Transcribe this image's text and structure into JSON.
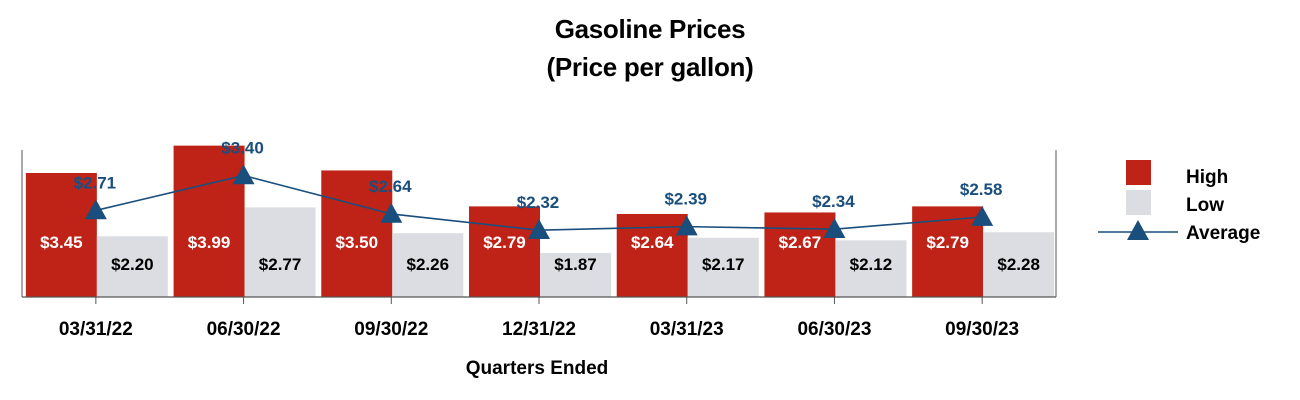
{
  "chart_data": {
    "type": "bar",
    "title": "Gasoline Prices",
    "subtitle": "(Price per gallon)",
    "xlabel": "Quarters Ended",
    "ylabel": "",
    "ylim": [
      1.0,
      4.2
    ],
    "categories": [
      "03/31/22",
      "06/30/22",
      "09/30/22",
      "12/31/22",
      "03/31/23",
      "06/30/23",
      "09/30/23"
    ],
    "series": [
      {
        "name": "High",
        "kind": "bar",
        "color": "#bf2318",
        "values": [
          3.45,
          3.99,
          3.5,
          2.79,
          2.64,
          2.67,
          2.79
        ],
        "labels": [
          "$3.45",
          "$3.99",
          "$3.50",
          "$2.79",
          "$2.64",
          "$2.67",
          "$2.79"
        ]
      },
      {
        "name": "Low",
        "kind": "bar",
        "color": "#dcdde2",
        "values": [
          2.2,
          2.77,
          2.26,
          1.87,
          2.17,
          2.12,
          2.28
        ],
        "labels": [
          "$2.20",
          "$2.77",
          "$2.26",
          "$1.87",
          "$2.17",
          "$2.12",
          "$2.28"
        ]
      },
      {
        "name": "Average",
        "kind": "line",
        "color": "#1a4e7c",
        "values": [
          2.71,
          3.4,
          2.64,
          2.32,
          2.39,
          2.34,
          2.58
        ],
        "labels": [
          "$2.71",
          "$3.40",
          "$2.64",
          "$2.32",
          "$2.39",
          "$2.34",
          "$2.58"
        ]
      }
    ],
    "legend": "right"
  }
}
